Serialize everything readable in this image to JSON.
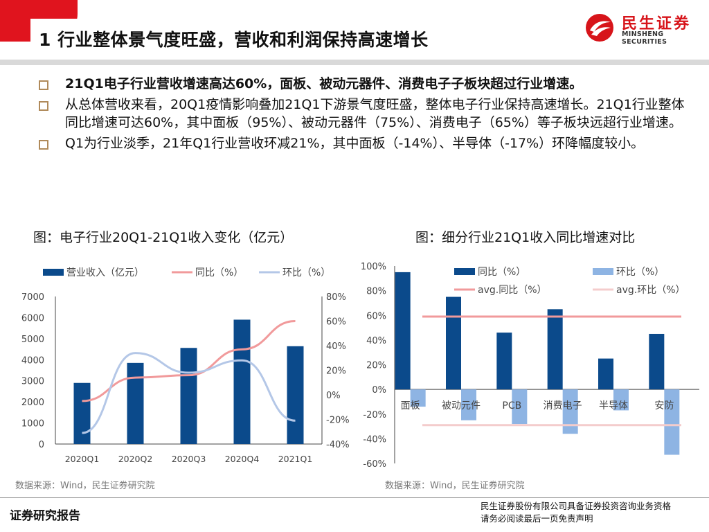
{
  "header": {
    "title": "1 行业整体景气度旺盛，营收和利润保持高速增长",
    "logo_cn": "民生证券",
    "logo_en": "MINSHENG SECURITIES"
  },
  "bullets": [
    "21Q1电子行业营收增速高达60%，面板、被动元器件、消费电子子板块超过行业增速。",
    "从总体营收来看，20Q1疫情影响叠加21Q1下游景气度旺盛，整体电子行业保持高速增长。21Q1行业整体同比增速可达60%，其中面板（95%）、被动元器件（75%）、消费电子（65%）等子板块远超行业增速。",
    "Q1为行业淡季，21年Q1行业营收环减21%，其中面板（-14%）、半导体（-17%）环降幅度较小。"
  ],
  "captions": {
    "left": "图：电子行业20Q1-21Q1收入变化（亿元）",
    "right": "图：细分行业21Q1收入同比增速对比"
  },
  "chart_data": [
    {
      "type": "bar",
      "title": "电子行业20Q1-21Q1收入变化（亿元）",
      "categories": [
        "2020Q1",
        "2020Q2",
        "2020Q3",
        "2020Q4",
        "2021Q1"
      ],
      "series": [
        {
          "name": "营业收入（亿元）",
          "type": "bar",
          "axis": "left",
          "values": [
            2900,
            3850,
            4560,
            5900,
            4640
          ],
          "color": "#0b4a8b"
        },
        {
          "name": "同比（%）",
          "type": "line",
          "axis": "right",
          "values": [
            -5,
            14,
            16,
            37,
            60
          ],
          "color": "#f19a9b"
        },
        {
          "name": "环比（%）",
          "type": "line",
          "axis": "right",
          "values": [
            -31,
            34,
            18,
            28,
            -21
          ],
          "color": "#b4c7e7"
        }
      ],
      "ylim_left": [
        0,
        7000
      ],
      "yticks_left": [
        "0",
        "1000",
        "2000",
        "3000",
        "4000",
        "5000",
        "6000",
        "7000"
      ],
      "ylim_right": [
        -40,
        80
      ],
      "yticks_right": [
        "-40%",
        "-20%",
        "0%",
        "20%",
        "40%",
        "60%",
        "80%"
      ],
      "legend": "top"
    },
    {
      "type": "bar",
      "title": "细分行业21Q1收入同比增速对比",
      "categories": [
        "面板",
        "被动元件",
        "PCB",
        "消费电子",
        "半导体",
        "安防"
      ],
      "series": [
        {
          "name": "同比（%）",
          "values": [
            95,
            75,
            46,
            65,
            25,
            45
          ],
          "color": "#0b4a8b"
        },
        {
          "name": "环比（%）",
          "values": [
            -14,
            -25,
            -28,
            -36,
            -17,
            -53
          ],
          "color": "#8eb4e3"
        },
        {
          "name": "avg.同比（%）",
          "type": "hline",
          "value": 59,
          "color": "#f19a9b"
        },
        {
          "name": "avg.环比（%）",
          "type": "hline",
          "value": -29,
          "color": "#f4cccc"
        }
      ],
      "ylim": [
        -60,
        100
      ],
      "yticks": [
        "-60%",
        "-40%",
        "-20%",
        "0%",
        "20%",
        "40%",
        "60%",
        "80%",
        "100%"
      ],
      "legend": "top"
    }
  ],
  "sources": {
    "left": "数据来源：Wind，民生证券研究院",
    "right": "数据来源：Wind，民生证券研究院"
  },
  "footer": {
    "left": "证券研究报告",
    "right_line1": "民生证券股份有限公司具备证券投资咨询业务资格",
    "right_line2": "请务必阅读最后一页免责声明"
  }
}
